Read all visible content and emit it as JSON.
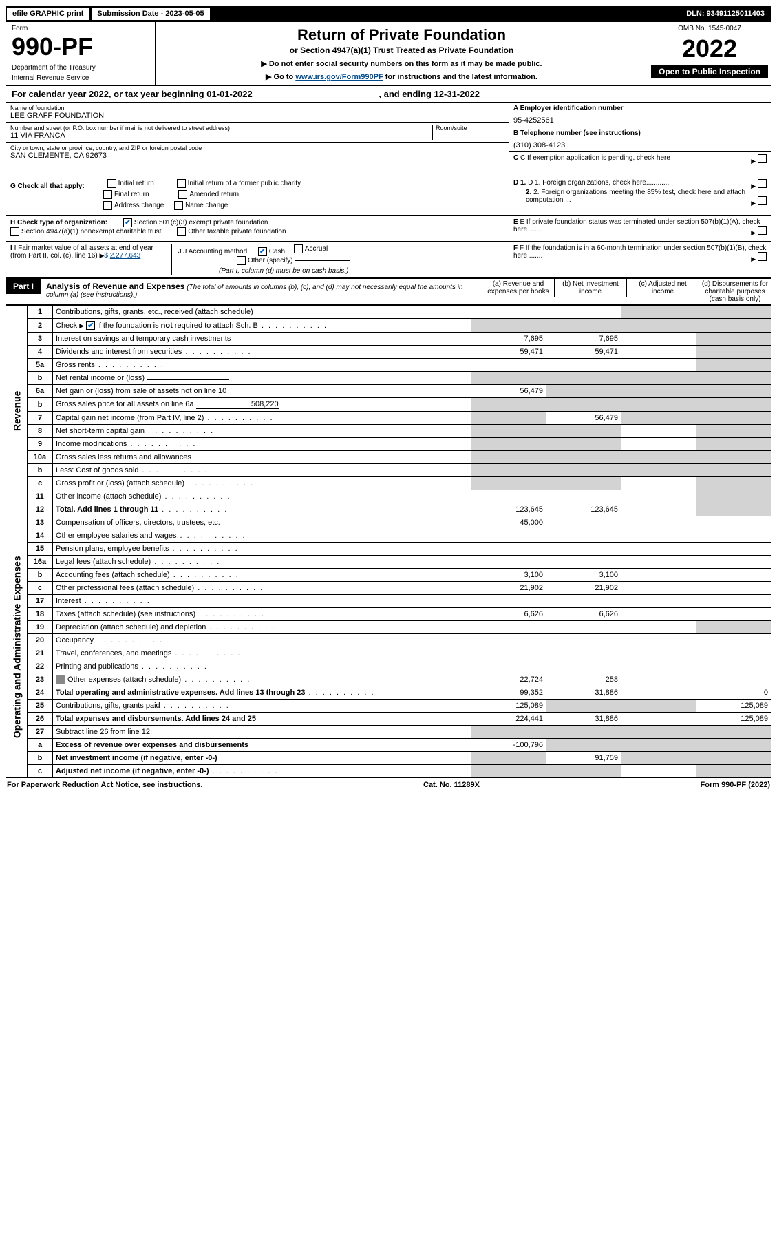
{
  "topbar": {
    "efile": "efile GRAPHIC print",
    "subdate_label": "Submission Date - 2023-05-05",
    "dln": "DLN: 93491125011403"
  },
  "header": {
    "form_word": "Form",
    "form_number": "990-PF",
    "dept1": "Department of the Treasury",
    "dept2": "Internal Revenue Service",
    "title": "Return of Private Foundation",
    "subtitle": "or Section 4947(a)(1) Trust Treated as Private Foundation",
    "note1_pre": "▶ Do not enter social security numbers on this form as it may be made public.",
    "note2_pre": "▶ Go to ",
    "note2_link": "www.irs.gov/Form990PF",
    "note2_post": " for instructions and the latest information.",
    "omb": "OMB No. 1545-0047",
    "year": "2022",
    "open": "Open to Public Inspection"
  },
  "cal_year": {
    "prefix": "For calendar year 2022, or tax year beginning ",
    "begin": "01-01-2022",
    "mid": " , and ending ",
    "end": "12-31-2022"
  },
  "info": {
    "name_label": "Name of foundation",
    "name": "LEE GRAFF FOUNDATION",
    "addr_label": "Number and street (or P.O. box number if mail is not delivered to street address)",
    "room_label": "Room/suite",
    "addr": "11 VIA FRANCA",
    "city_label": "City or town, state or province, country, and ZIP or foreign postal code",
    "city": "SAN CLEMENTE, CA  92673",
    "ein_label": "A Employer identification number",
    "ein": "95-4252561",
    "phone_label": "B Telephone number (see instructions)",
    "phone": "(310) 308-4123",
    "c_label": "C If exemption application is pending, check here",
    "d1": "D 1. Foreign organizations, check here............",
    "d2": "2. Foreign organizations meeting the 85% test, check here and attach computation ...",
    "e": "E  If private foundation status was terminated under section 507(b)(1)(A), check here .......",
    "f": "F  If the foundation is in a 60-month termination under section 507(b)(1)(B), check here .......",
    "g_label": "G Check all that apply:",
    "g_initial": "Initial return",
    "g_initial_former": "Initial return of a former public charity",
    "g_final": "Final return",
    "g_amended": "Amended return",
    "g_addr": "Address change",
    "g_name": "Name change",
    "h_label": "H Check type of organization:",
    "h_501c3": "Section 501(c)(3) exempt private foundation",
    "h_4947": "Section 4947(a)(1) nonexempt charitable trust",
    "h_other": "Other taxable private foundation",
    "i_label": "I Fair market value of all assets at end of year (from Part II, col. (c), line 16)",
    "i_val": "2,277,643",
    "j_label": "J Accounting method:",
    "j_cash": "Cash",
    "j_accrual": "Accrual",
    "j_other": "Other (specify)",
    "j_note": "(Part I, column (d) must be on cash basis.)"
  },
  "part1": {
    "badge": "Part I",
    "title": "Analysis of Revenue and Expenses",
    "note": " (The total of amounts in columns (b), (c), and (d) may not necessarily equal the amounts in column (a) (see instructions).)",
    "col_a": "(a)  Revenue and expenses per books",
    "col_b": "(b)  Net investment income",
    "col_c": "(c)  Adjusted net income",
    "col_d": "(d)  Disbursements for charitable purposes (cash basis only)"
  },
  "side": {
    "revenue": "Revenue",
    "opex": "Operating and Administrative Expenses"
  },
  "rows": [
    {
      "n": "1",
      "d": "Contributions, gifts, grants, etc., received (attach schedule)",
      "a": "",
      "b": "",
      "c": "s",
      "dcol": "s"
    },
    {
      "n": "2",
      "d": "Check ▶ ☑ if the foundation is not required to attach Sch. B",
      "dots": true,
      "a": "s",
      "b": "s",
      "c": "s",
      "dcol": "s",
      "check": true
    },
    {
      "n": "3",
      "d": "Interest on savings and temporary cash investments",
      "a": "7,695",
      "b": "7,695",
      "c": "",
      "dcol": "s"
    },
    {
      "n": "4",
      "d": "Dividends and interest from securities",
      "dots": true,
      "a": "59,471",
      "b": "59,471",
      "c": "",
      "dcol": "s"
    },
    {
      "n": "5a",
      "d": "Gross rents",
      "dots": true,
      "a": "",
      "b": "",
      "c": "",
      "dcol": "s"
    },
    {
      "n": "b",
      "d": "Net rental income or (loss)",
      "a": "s",
      "b": "s",
      "c": "s",
      "dcol": "s",
      "inline": true
    },
    {
      "n": "6a",
      "d": "Net gain or (loss) from sale of assets not on line 10",
      "a": "56,479",
      "b": "s",
      "c": "s",
      "dcol": "s"
    },
    {
      "n": "b",
      "d": "Gross sales price for all assets on line 6a",
      "a": "s",
      "b": "s",
      "c": "s",
      "dcol": "s",
      "inline": true,
      "ival": "508,220"
    },
    {
      "n": "7",
      "d": "Capital gain net income (from Part IV, line 2)",
      "dots": true,
      "a": "s",
      "b": "56,479",
      "c": "s",
      "dcol": "s"
    },
    {
      "n": "8",
      "d": "Net short-term capital gain",
      "dots": true,
      "a": "s",
      "b": "s",
      "c": "",
      "dcol": "s"
    },
    {
      "n": "9",
      "d": "Income modifications",
      "dots": true,
      "a": "s",
      "b": "s",
      "c": "",
      "dcol": "s"
    },
    {
      "n": "10a",
      "d": "Gross sales less returns and allowances",
      "a": "s",
      "b": "s",
      "c": "s",
      "dcol": "s",
      "inline": true
    },
    {
      "n": "b",
      "d": "Less: Cost of goods sold",
      "dots": true,
      "a": "s",
      "b": "s",
      "c": "s",
      "dcol": "s",
      "inline": true
    },
    {
      "n": "c",
      "d": "Gross profit or (loss) (attach schedule)",
      "dots": true,
      "a": "s",
      "b": "s",
      "c": "",
      "dcol": "s"
    },
    {
      "n": "11",
      "d": "Other income (attach schedule)",
      "dots": true,
      "a": "",
      "b": "",
      "c": "",
      "dcol": "s"
    },
    {
      "n": "12",
      "d": "Total. Add lines 1 through 11",
      "dots": true,
      "bold": true,
      "a": "123,645",
      "b": "123,645",
      "c": "",
      "dcol": "s"
    },
    {
      "n": "13",
      "d": "Compensation of officers, directors, trustees, etc.",
      "a": "45,000",
      "b": "",
      "c": "",
      "dcol": ""
    },
    {
      "n": "14",
      "d": "Other employee salaries and wages",
      "dots": true,
      "a": "",
      "b": "",
      "c": "",
      "dcol": ""
    },
    {
      "n": "15",
      "d": "Pension plans, employee benefits",
      "dots": true,
      "a": "",
      "b": "",
      "c": "",
      "dcol": ""
    },
    {
      "n": "16a",
      "d": "Legal fees (attach schedule)",
      "dots": true,
      "a": "",
      "b": "",
      "c": "",
      "dcol": ""
    },
    {
      "n": "b",
      "d": "Accounting fees (attach schedule)",
      "dots": true,
      "a": "3,100",
      "b": "3,100",
      "c": "",
      "dcol": ""
    },
    {
      "n": "c",
      "d": "Other professional fees (attach schedule)",
      "dots": true,
      "a": "21,902",
      "b": "21,902",
      "c": "",
      "dcol": ""
    },
    {
      "n": "17",
      "d": "Interest",
      "dots": true,
      "a": "",
      "b": "",
      "c": "",
      "dcol": ""
    },
    {
      "n": "18",
      "d": "Taxes (attach schedule) (see instructions)",
      "dots": true,
      "a": "6,626",
      "b": "6,626",
      "c": "",
      "dcol": ""
    },
    {
      "n": "19",
      "d": "Depreciation (attach schedule) and depletion",
      "dots": true,
      "a": "",
      "b": "",
      "c": "",
      "dcol": "s"
    },
    {
      "n": "20",
      "d": "Occupancy",
      "dots": true,
      "a": "",
      "b": "",
      "c": "",
      "dcol": ""
    },
    {
      "n": "21",
      "d": "Travel, conferences, and meetings",
      "dots": true,
      "a": "",
      "b": "",
      "c": "",
      "dcol": ""
    },
    {
      "n": "22",
      "d": "Printing and publications",
      "dots": true,
      "a": "",
      "b": "",
      "c": "",
      "dcol": ""
    },
    {
      "n": "23",
      "d": "Other expenses (attach schedule)",
      "dots": true,
      "a": "22,724",
      "b": "258",
      "c": "",
      "dcol": "",
      "icon": true
    },
    {
      "n": "24",
      "d": "Total operating and administrative expenses. Add lines 13 through 23",
      "dots": true,
      "bold": true,
      "a": "99,352",
      "b": "31,886",
      "c": "",
      "dcol": "0"
    },
    {
      "n": "25",
      "d": "Contributions, gifts, grants paid",
      "dots": true,
      "a": "125,089",
      "b": "s",
      "c": "s",
      "dcol": "125,089"
    },
    {
      "n": "26",
      "d": "Total expenses and disbursements. Add lines 24 and 25",
      "bold": true,
      "a": "224,441",
      "b": "31,886",
      "c": "",
      "dcol": "125,089"
    },
    {
      "n": "27",
      "d": "Subtract line 26 from line 12:",
      "a": "s",
      "b": "s",
      "c": "s",
      "dcol": "s"
    },
    {
      "n": "a",
      "d": "Excess of revenue over expenses and disbursements",
      "bold": true,
      "a": "-100,796",
      "b": "s",
      "c": "s",
      "dcol": "s"
    },
    {
      "n": "b",
      "d": "Net investment income (if negative, enter -0-)",
      "bold": true,
      "a": "s",
      "b": "91,759",
      "c": "s",
      "dcol": "s"
    },
    {
      "n": "c",
      "d": "Adjusted net income (if negative, enter -0-)",
      "dots": true,
      "bold": true,
      "a": "s",
      "b": "s",
      "c": "",
      "dcol": "s"
    }
  ],
  "footer": {
    "left": "For Paperwork Reduction Act Notice, see instructions.",
    "center": "Cat. No. 11289X",
    "right": "Form 990-PF (2022)"
  },
  "colors": {
    "link": "#004b8d",
    "shade": "#d3d3d3",
    "check": "#0066cc"
  }
}
